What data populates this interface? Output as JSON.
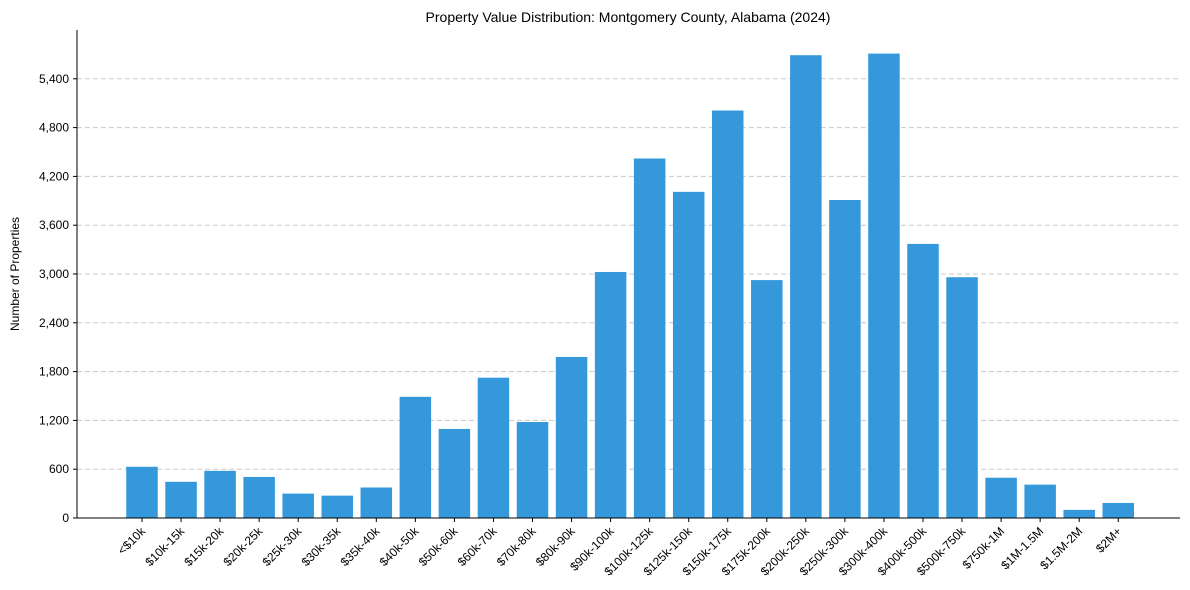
{
  "chart_data": {
    "type": "bar",
    "title": "Property Value Distribution: Montgomery County, Alabama (2024)",
    "xlabel": "",
    "ylabel": "Number of Properties",
    "ylim": [
      0,
      6000
    ],
    "yticks": [
      0,
      600,
      1200,
      1800,
      2400,
      3000,
      3600,
      4200,
      4800,
      5400
    ],
    "ytick_labels": [
      "0",
      "600",
      "1,200",
      "1,800",
      "2,400",
      "3,000",
      "3,600",
      "4,200",
      "4,800",
      "5,400"
    ],
    "grid": "y-dashed",
    "color": "#3498db",
    "categories": [
      "<$10k",
      "$10k-15k",
      "$15k-20k",
      "$20k-25k",
      "$25k-30k",
      "$30k-35k",
      "$35k-40k",
      "$40k-50k",
      "$50k-60k",
      "$60k-70k",
      "$70k-80k",
      "$80k-90k",
      "$90k-100k",
      "$100k-125k",
      "$125k-150k",
      "$150k-175k",
      "$175k-200k",
      "$200k-250k",
      "$250k-300k",
      "$300k-400k",
      "$400k-500k",
      "$500k-750k",
      "$750k-1M",
      "$1M-1.5M",
      "$1.5M-2M",
      "$2M+"
    ],
    "values": [
      630,
      445,
      580,
      505,
      300,
      275,
      375,
      1490,
      1095,
      1725,
      1180,
      1980,
      3025,
      4420,
      4010,
      5010,
      2925,
      5690,
      3910,
      5710,
      3370,
      2960,
      495,
      410,
      100,
      185
    ]
  }
}
